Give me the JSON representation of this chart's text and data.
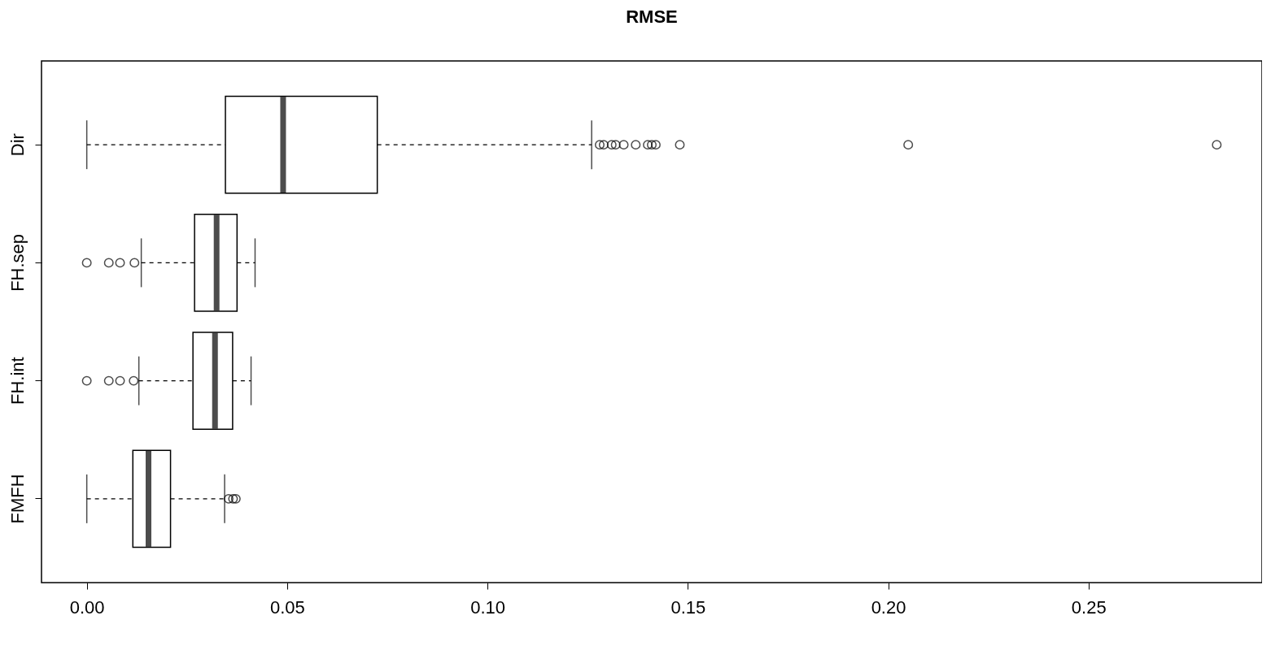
{
  "chart_data": {
    "type": "box",
    "title": "RMSE",
    "orientation": "horizontal",
    "categories": [
      "Dir",
      "FH.sep",
      "FH.int",
      "FMFH"
    ],
    "boxes": [
      {
        "low": 0,
        "q1": 0.0346,
        "median": 0.049,
        "q3": 0.0725,
        "high": 0.126,
        "outliers": [
          0.128,
          0.129,
          0.131,
          0.132,
          0.134,
          0.137,
          0.14,
          0.141,
          0.142,
          0.148,
          0.205,
          0.282
        ]
      },
      {
        "low": 0.0136,
        "q1": 0.0269,
        "median": 0.0324,
        "q3": 0.0375,
        "high": 0.042,
        "outliers": [
          0,
          0.0055,
          0.0083,
          0.0119
        ]
      },
      {
        "low": 0.013,
        "q1": 0.0265,
        "median": 0.032,
        "q3": 0.0364,
        "high": 0.041,
        "outliers": [
          0,
          0.0055,
          0.0083,
          0.0117
        ]
      },
      {
        "low": 0,
        "q1": 0.0115,
        "median": 0.0154,
        "q3": 0.0209,
        "high": 0.0344,
        "outliers": [
          0.0354,
          0.0365,
          0.0372
        ]
      }
    ],
    "xlim": [
      -0.0113,
      0.2933
    ],
    "xticks": [
      {
        "value": 0,
        "label": "0.00"
      },
      {
        "value": 0.05,
        "label": "0.05"
      },
      {
        "value": 0.1,
        "label": "0.10"
      },
      {
        "value": 0.15,
        "label": "0.15"
      },
      {
        "value": 0.2,
        "label": "0.20"
      },
      {
        "value": 0.25,
        "label": "0.25"
      }
    ]
  }
}
